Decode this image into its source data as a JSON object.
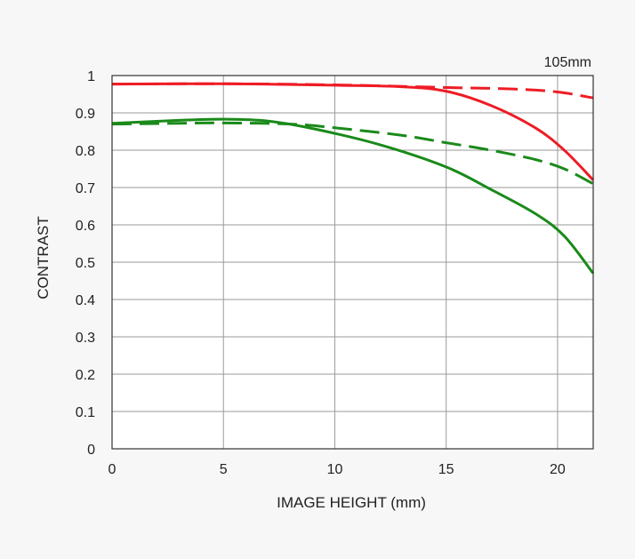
{
  "chart_data": {
    "type": "line",
    "annotation": "105mm",
    "xlabel": "IMAGE HEIGHT (mm)",
    "ylabel": "CONTRAST",
    "xlim": [
      0,
      21.6
    ],
    "ylim": [
      0,
      1
    ],
    "x_ticks": [
      "0",
      "5",
      "10",
      "15",
      "20"
    ],
    "y_ticks": [
      "0",
      "0.1",
      "0.2",
      "0.3",
      "0.4",
      "0.5",
      "0.6",
      "0.7",
      "0.8",
      "0.9",
      "1"
    ],
    "grid": true,
    "series": [
      {
        "color": "#ee1c25",
        "dash": false,
        "x": [
          0,
          5,
          10,
          13,
          15,
          17,
          19,
          20.3,
          21.6
        ],
        "y": [
          0.977,
          0.978,
          0.974,
          0.97,
          0.958,
          0.92,
          0.86,
          0.8,
          0.72
        ]
      },
      {
        "color": "#ee1c25",
        "dash": true,
        "x": [
          0,
          5,
          10,
          15,
          18,
          20,
          21.6
        ],
        "y": [
          0.977,
          0.978,
          0.975,
          0.968,
          0.964,
          0.956,
          0.94
        ]
      },
      {
        "color": "#1a8a1a",
        "dash": false,
        "x": [
          0,
          3,
          5,
          7,
          9,
          12,
          15,
          17,
          19,
          20.3,
          21.6
        ],
        "y": [
          0.872,
          0.88,
          0.883,
          0.878,
          0.858,
          0.815,
          0.755,
          0.695,
          0.63,
          0.57,
          0.47
        ]
      },
      {
        "color": "#1a8a1a",
        "dash": true,
        "x": [
          0,
          3,
          5,
          8,
          10,
          13,
          15,
          17,
          19,
          20.3,
          21.6
        ],
        "y": [
          0.87,
          0.872,
          0.873,
          0.87,
          0.86,
          0.84,
          0.82,
          0.8,
          0.775,
          0.75,
          0.71
        ]
      }
    ]
  }
}
